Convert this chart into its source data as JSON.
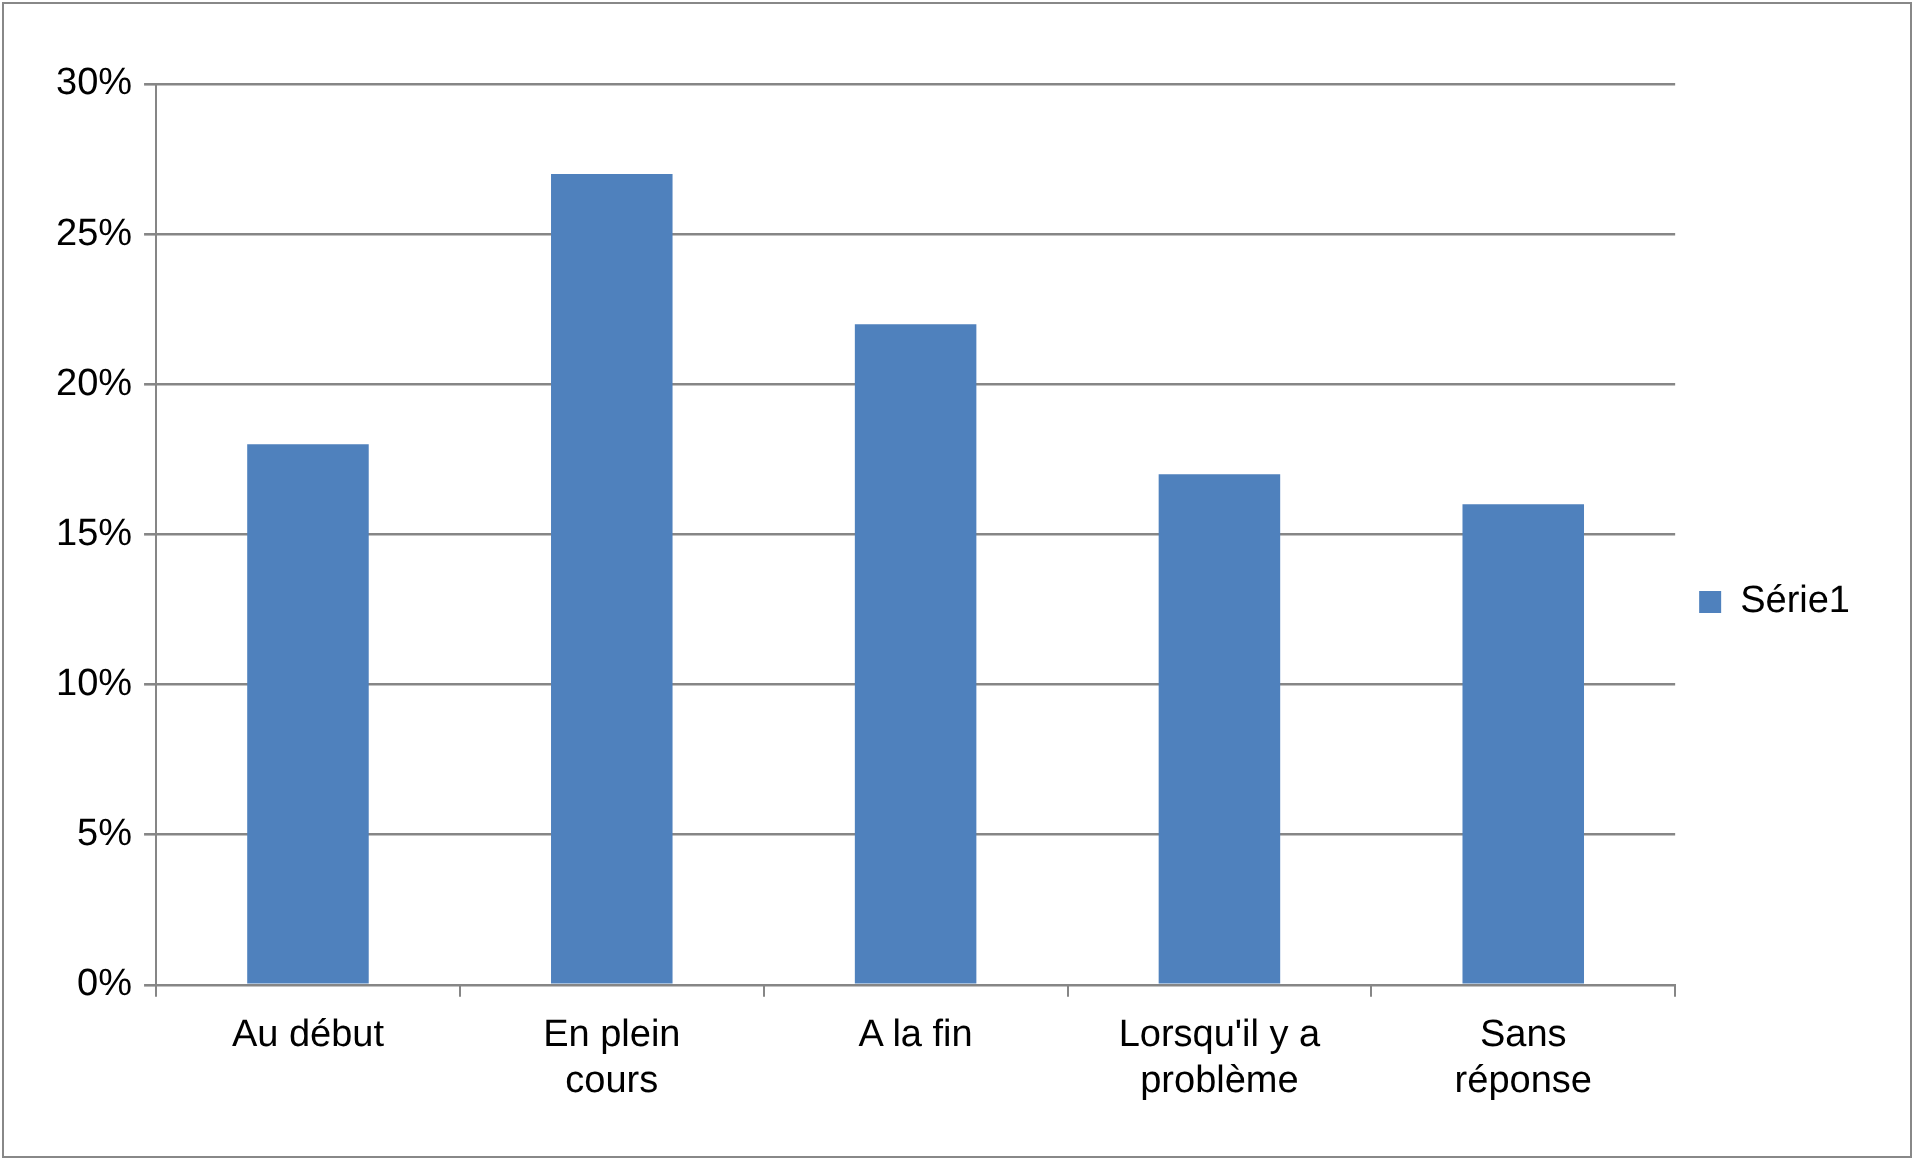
{
  "chart_data": {
    "type": "bar",
    "categories": [
      "Au début",
      "En plein cours",
      "A la fin",
      "Lorsqu'il y a problème",
      "Sans réponse"
    ],
    "series": [
      {
        "name": "Série1",
        "color": "#4f81bd",
        "values": [
          18,
          27,
          22,
          17,
          16
        ]
      }
    ],
    "ylim": [
      0,
      30
    ],
    "yticks": [
      {
        "value": 0,
        "label": "0%"
      },
      {
        "value": 5,
        "label": "5%"
      },
      {
        "value": 10,
        "label": "10%"
      },
      {
        "value": 15,
        "label": "15%"
      },
      {
        "value": 20,
        "label": "20%"
      },
      {
        "value": 25,
        "label": "25%"
      },
      {
        "value": 30,
        "label": "30%"
      }
    ],
    "grid": "y",
    "legend": "right"
  }
}
